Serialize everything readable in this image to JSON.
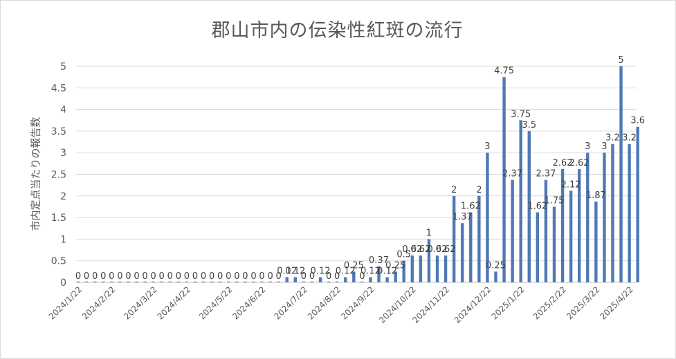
{
  "chart_data": {
    "type": "bar",
    "title": "郡山市内の伝染性紅斑の流行",
    "xlabel": "",
    "ylabel": "市内定点当たりの報告数",
    "ylim": [
      0,
      5
    ],
    "yticks": [
      "0",
      "0.5",
      "1",
      "1.5",
      "2",
      "2.5",
      "3",
      "3.5",
      "4",
      "4.5",
      "5"
    ],
    "grid": true,
    "legend": "none",
    "bar_color": "#4f79b4",
    "x_tick_labels": [
      "2024/1/22",
      "2024/2/22",
      "2024/3/22",
      "2024/4/22",
      "2024/5/22",
      "2024/6/22",
      "2024/7/22",
      "2024/8/22",
      "2024/9/22",
      "2024/10/22",
      "2024/11/22",
      "2024/12/22",
      "2025/1/22",
      "2025/2/22",
      "2025/3/22",
      "2025/4/22"
    ],
    "values": [
      0,
      0,
      0,
      0,
      0,
      0,
      0,
      0,
      0,
      0,
      0,
      0,
      0,
      0,
      0,
      0,
      0,
      0,
      0,
      0,
      0,
      0,
      0,
      0,
      0,
      0.12,
      0.12,
      0,
      0,
      0.12,
      0,
      0,
      0.12,
      0.25,
      0,
      0.12,
      0.37,
      0.12,
      0.25,
      0.5,
      0.62,
      0.62,
      1,
      0.62,
      0.62,
      2,
      1.37,
      1.62,
      2,
      3,
      0.25,
      4.75,
      2.37,
      3.75,
      3.5,
      1.62,
      2.37,
      1.75,
      2.62,
      2.12,
      2.62,
      3,
      1.87,
      3,
      3.2,
      5,
      3.2,
      3.6
    ],
    "data_labels": [
      "0",
      "0",
      "0",
      "0",
      "0",
      "0",
      "0",
      "0",
      "0",
      "0",
      "0",
      "0",
      "0",
      "0",
      "0",
      "0",
      "0",
      "0",
      "0",
      "0",
      "0",
      "0",
      "0",
      "0",
      "0",
      "0.12",
      "0.12",
      "0",
      "0",
      "0.12",
      "0",
      "0",
      "0.12",
      "0.25",
      "0",
      "0.12",
      "0.37",
      "0.12",
      "0.25",
      "0.5",
      "0.62",
      "0.62",
      "1",
      "0.62",
      "0.62",
      "2",
      "1.37",
      "1.62",
      "2",
      "3",
      "0.25",
      "4.75",
      "2.37",
      "3.75",
      "3.5",
      "1.62",
      "2.37",
      "1.75",
      "2.62",
      "2.12",
      "2.62",
      "3",
      "1.87",
      "3",
      "3.2",
      "5",
      "3.2",
      "3.6"
    ]
  }
}
